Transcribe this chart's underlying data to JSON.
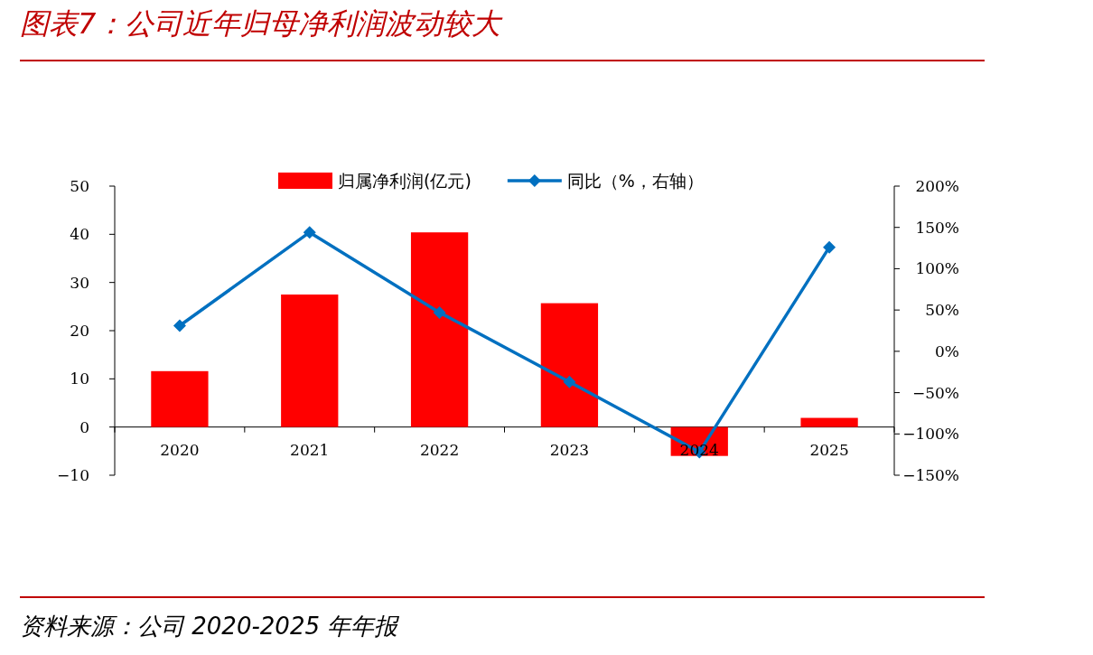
{
  "chart_data": {
    "type": "bar",
    "title": "图表7：公司近年归母净利润波动较大",
    "categories": [
      "2020",
      "2021",
      "2022",
      "2023",
      "2024",
      "2025"
    ],
    "series": [
      {
        "name": "归属净利润(亿元)",
        "color": "#ff0000",
        "values": [
          11.6,
          27.5,
          40.4,
          25.7,
          -6.0,
          1.9
        ]
      },
      {
        "name": "同比（%，右轴）",
        "type": "line",
        "axis": "y2",
        "color": "#0070c0",
        "marker": "diamond",
        "values": [
          31,
          144,
          47,
          -37,
          -122,
          126
        ]
      }
    ],
    "ylim": [
      -10,
      50
    ],
    "yticks": [
      {
        "value": -10,
        "label": "−10"
      },
      0,
      10,
      20,
      30,
      40,
      50
    ],
    "y2lim": [
      -150,
      200
    ],
    "y2ticks": [
      {
        "value": -150,
        "label": "−150%"
      },
      {
        "value": -100,
        "label": "−100%"
      },
      {
        "value": -50,
        "label": "−50%"
      },
      {
        "value": 0,
        "label": "0%"
      },
      {
        "value": 50,
        "label": "50%"
      },
      {
        "value": 100,
        "label": "100%"
      },
      {
        "value": 150,
        "label": "150%"
      },
      {
        "value": 200,
        "label": "200%"
      }
    ],
    "grid": false,
    "legend": "top",
    "annotations": [
      "资料来源：公司 2020-2025 年年报"
    ]
  }
}
